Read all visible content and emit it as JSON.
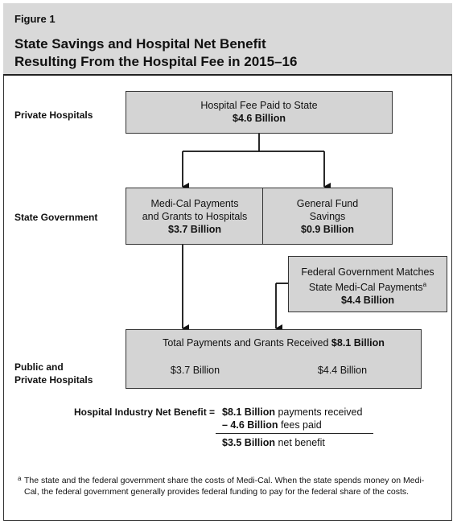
{
  "header": {
    "figure_label": "Figure 1",
    "title_line1": "State Savings and Hospital Net Benefit",
    "title_line2": "Resulting From the Hospital Fee in 2015–16"
  },
  "rows": {
    "private_hospitals": "Private Hospitals",
    "state_government": "State Government",
    "public_private_line1": "Public and",
    "public_private_line2": "Private Hospitals"
  },
  "boxes": {
    "fee": {
      "line1": "Hospital Fee Paid to State",
      "amount": "$4.6 Billion"
    },
    "medi_cal": {
      "line1": "Medi-Cal Payments",
      "line2": "and Grants to Hospitals",
      "amount": "$3.7 Billion"
    },
    "general_fund": {
      "line1": "General Fund",
      "line2": "Savings",
      "amount": "$0.9 Billion"
    },
    "federal": {
      "line1": "Federal Government Matches",
      "line2": "State Medi-Cal Payments",
      "footnote_mark": "a",
      "amount": "$4.4 Billion"
    },
    "total": {
      "label": "Total Payments and Grants Received",
      "amount": "$8.1 Billion",
      "left": "$3.7 Billion",
      "right": "$4.4 Billion"
    }
  },
  "net_benefit": {
    "label": "Hospital Industry Net Benefit =",
    "line1_amount": "$8.1 Billion",
    "line1_text": "payments received",
    "line2_amount": "– 4.6 Billion",
    "line2_text": "fees paid",
    "line3_amount": "$3.5 Billion",
    "line3_text": "net benefit"
  },
  "footnote": {
    "mark": "a",
    "text": "The state and the federal government share the costs of Medi-Cal. When the state spends money on Medi-Cal, the federal government generally provides federal funding to pay for the federal share of the costs."
  },
  "colors": {
    "box_fill": "#d4d4d4",
    "header_fill": "#d9d9d9",
    "stroke": "#333333"
  }
}
